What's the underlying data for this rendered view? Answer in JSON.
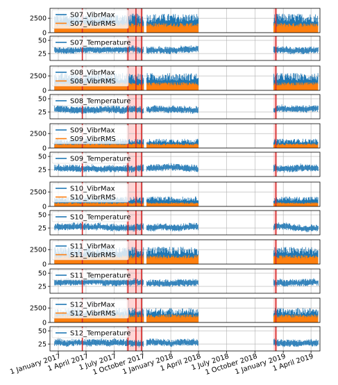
{
  "chart_data": {
    "type": "line",
    "colors": {
      "max": "#1f77b4",
      "rms": "#ff7f0e",
      "temp": "#1f77b4",
      "event_line": "#d62728",
      "event_band": "#ffd6d6",
      "grid": "#b0b0b0"
    },
    "x_tick_labels": [
      "1 January 2017",
      "1 April 2017",
      "1 July 2017",
      "1 October 2017",
      "1 January 2018",
      "1 April 2018",
      "1 July 2018",
      "1 October 2018",
      "1 January 2019",
      "1 April 2019"
    ],
    "x_range": [
      "2016-12-05",
      "2019-04-30"
    ],
    "data_periods": [
      [
        "2016-12-20",
        "2017-10-05"
      ],
      [
        "2017-10-15",
        "2018-04-01"
      ],
      [
        "2018-12-01",
        "2019-04-25"
      ]
    ],
    "event_lines": [
      "2017-03-20",
      "2017-08-15",
      "2017-09-10",
      "2017-09-28",
      "2018-12-08"
    ],
    "event_bands": [
      [
        "2017-08-10",
        "2017-10-02"
      ],
      [
        "2018-11-30",
        "2018-12-12"
      ]
    ],
    "panels": [
      {
        "kind": "vibr",
        "series": [
          "S07_VibrMax",
          "S07_VibrRMS"
        ],
        "yticks": [
          0,
          2500
        ],
        "ylim": [
          0,
          4200
        ],
        "max_level": 3300,
        "rms_level": 1700
      },
      {
        "kind": "temp",
        "series": [
          "S07_Temperature"
        ],
        "yticks": [
          25,
          50
        ],
        "ylim": [
          12,
          58
        ],
        "temp_level": 32
      },
      {
        "kind": "vibr",
        "series": [
          "S08_VibrMax",
          "S08_VibrRMS"
        ],
        "yticks": [
          0,
          2500
        ],
        "ylim": [
          0,
          4200
        ],
        "max_level": 3000,
        "rms_level": 1400
      },
      {
        "kind": "temp",
        "series": [
          "S08_Temperature"
        ],
        "yticks": [
          25,
          50
        ],
        "ylim": [
          12,
          58
        ],
        "temp_level": 30
      },
      {
        "kind": "vibr",
        "series": [
          "S09_VibrMax",
          "S09_VibrRMS"
        ],
        "yticks": [
          0,
          2500
        ],
        "ylim": [
          0,
          4200
        ],
        "max_level": 1600,
        "rms_level": 800
      },
      {
        "kind": "temp",
        "series": [
          "S09_Temperature"
        ],
        "yticks": [
          25,
          50
        ],
        "ylim": [
          12,
          58
        ],
        "temp_level": 28
      },
      {
        "kind": "vibr",
        "series": [
          "S10_VibrMax",
          "S10_VibrRMS"
        ],
        "yticks": [
          0,
          2500
        ],
        "ylim": [
          0,
          4200
        ],
        "max_level": 1700,
        "rms_level": 700
      },
      {
        "kind": "temp",
        "series": [
          "S10_Temperature"
        ],
        "yticks": [
          25,
          50
        ],
        "ylim": [
          12,
          58
        ],
        "temp_level": 27
      },
      {
        "kind": "vibr",
        "series": [
          "S11_VibrMax",
          "S11_VibrRMS"
        ],
        "yticks": [
          0,
          2500
        ],
        "ylim": [
          0,
          4200
        ],
        "max_level": 3000,
        "rms_level": 1600
      },
      {
        "kind": "temp",
        "series": [
          "S11_Temperature"
        ],
        "yticks": [
          25,
          50
        ],
        "ylim": [
          12,
          58
        ],
        "temp_level": 32
      },
      {
        "kind": "vibr",
        "series": [
          "S12_VibrMax",
          "S12_VibrRMS"
        ],
        "yticks": [
          0,
          2500
        ],
        "ylim": [
          0,
          4200
        ],
        "max_level": 2500,
        "rms_level": 1400
      },
      {
        "kind": "temp",
        "series": [
          "S12_Temperature"
        ],
        "yticks": [
          25,
          50
        ],
        "ylim": [
          12,
          58
        ],
        "temp_level": 28
      }
    ]
  }
}
